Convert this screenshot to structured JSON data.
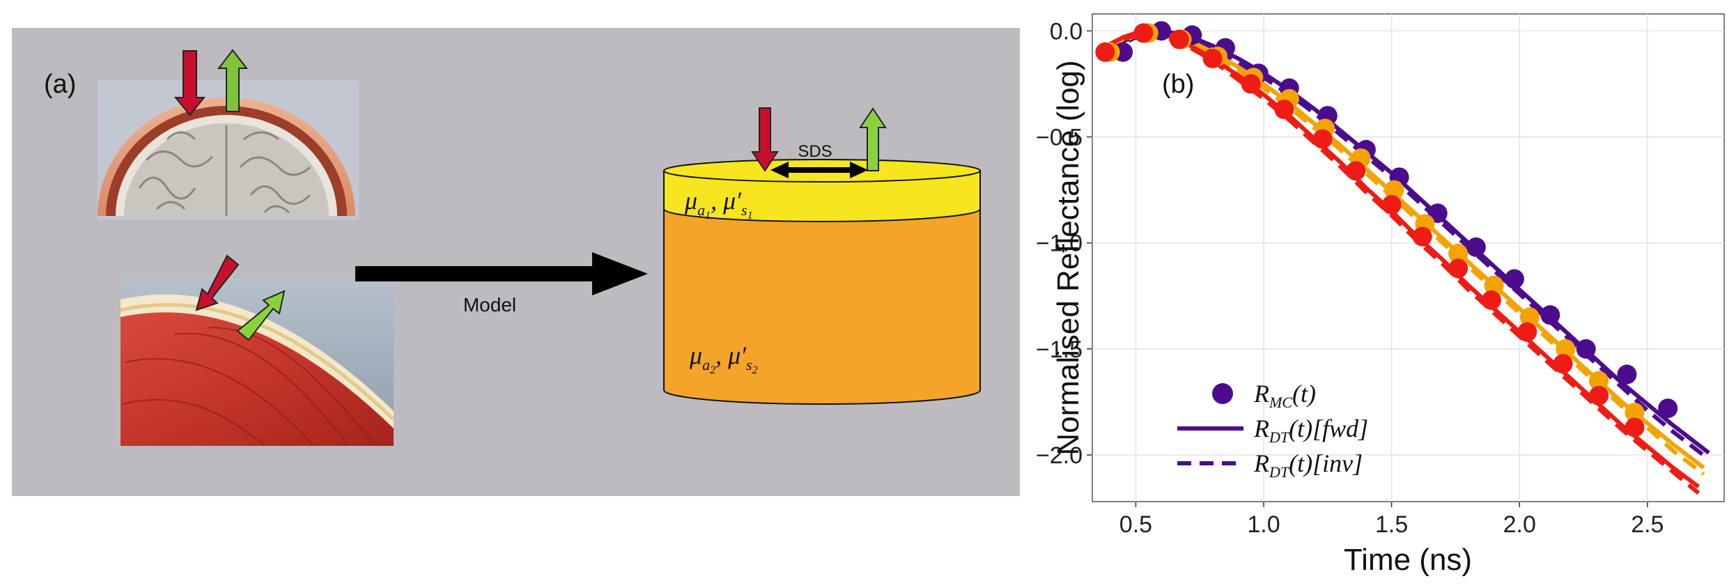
{
  "panel_a": {
    "label": "(a)",
    "arrow_label": "Model",
    "sds_label": "SDS",
    "top_layer": {
      "mu_a": "μ",
      "mu_a_sub": "a",
      "mu_a_subsub": "1",
      "sep": ", ",
      "mu_s": "μ′",
      "mu_s_sub": "s",
      "mu_s_subsub": "1"
    },
    "bottom_layer": {
      "mu_a": "μ",
      "mu_a_sub": "a",
      "mu_a_subsub": "2",
      "sep": ", ",
      "mu_s": "μ′",
      "mu_s_sub": "s",
      "mu_s_subsub": "2"
    },
    "colors": {
      "background": "#bdbbbf",
      "top_layer": "#f6e51f",
      "bottom_layer": "#f4a428",
      "in_arrow": "#c8102e",
      "out_arrow": "#7ec33a"
    }
  },
  "panel_b": {
    "label": "(b)",
    "chart_data": {
      "type": "line",
      "xlabel": "Time (ns)",
      "ylabel": "Normalised Reflectance (log)",
      "xlim": [
        0.33,
        2.8
      ],
      "ylim": [
        -2.22,
        0.08
      ],
      "xticks": [
        "0.5",
        "1.0",
        "1.5",
        "2.0",
        "2.5"
      ],
      "yticks": [
        "0.0",
        "−0.5",
        "−1.0",
        "−1.5",
        "−2.0"
      ],
      "grid": true,
      "legend_position": "bottom-left",
      "legend": [
        {
          "style": "marker",
          "base": "R",
          "sub": "MC",
          "arg": "(t)"
        },
        {
          "style": "solid",
          "base": "R",
          "sub": "DT",
          "arg": "(t)[fwd]"
        },
        {
          "style": "dashed",
          "base": "R",
          "sub": "DT",
          "arg": "(t)[inv]"
        }
      ],
      "series": [
        {
          "color": "#4b0d8e",
          "mc_x": [
            0.45,
            0.6,
            0.72,
            0.85,
            0.98,
            1.1,
            1.25,
            1.4,
            1.53,
            1.68,
            1.83,
            1.98,
            2.12,
            2.26,
            2.42,
            2.58
          ],
          "mc_y": [
            -0.1,
            0.0,
            -0.02,
            -0.08,
            -0.2,
            -0.27,
            -0.4,
            -0.56,
            -0.69,
            -0.86,
            -1.02,
            -1.17,
            -1.34,
            -1.5,
            -1.62,
            -1.78
          ],
          "fwd_x": [
            0.39,
            0.45,
            0.5,
            0.55,
            0.6,
            0.7,
            0.8,
            0.9,
            1.0,
            1.1,
            1.2,
            1.3,
            1.4,
            1.5,
            1.6,
            1.7,
            1.8,
            1.9,
            2.0,
            2.1,
            2.2,
            2.3,
            2.4,
            2.5,
            2.6,
            2.74
          ],
          "fwd_y": [
            -0.09,
            -0.05,
            -0.02,
            0.0,
            0.0,
            -0.02,
            -0.07,
            -0.13,
            -0.2,
            -0.28,
            -0.37,
            -0.47,
            -0.57,
            -0.67,
            -0.78,
            -0.89,
            -1.0,
            -1.11,
            -1.22,
            -1.33,
            -1.44,
            -1.55,
            -1.66,
            -1.76,
            -1.86,
            -1.99
          ],
          "inv_x": [
            0.39,
            0.45,
            0.5,
            0.55,
            0.6,
            0.7,
            0.8,
            0.9,
            1.0,
            1.1,
            1.2,
            1.3,
            1.4,
            1.5,
            1.6,
            1.7,
            1.8,
            1.9,
            2.0,
            2.1,
            2.2,
            2.3,
            2.4,
            2.5,
            2.6,
            2.74
          ],
          "inv_y": [
            -0.1,
            -0.06,
            -0.03,
            -0.01,
            -0.01,
            -0.03,
            -0.08,
            -0.15,
            -0.22,
            -0.3,
            -0.39,
            -0.49,
            -0.59,
            -0.69,
            -0.8,
            -0.91,
            -1.02,
            -1.13,
            -1.24,
            -1.35,
            -1.46,
            -1.57,
            -1.68,
            -1.79,
            -1.89,
            -2.02
          ]
        },
        {
          "color": "#f4a300",
          "mc_x": [
            0.4,
            0.55,
            0.68,
            0.82,
            0.96,
            1.1,
            1.24,
            1.38,
            1.51,
            1.63,
            1.76,
            1.9,
            2.04,
            2.18,
            2.31,
            2.45
          ],
          "mc_y": [
            -0.1,
            -0.01,
            -0.04,
            -0.12,
            -0.22,
            -0.32,
            -0.46,
            -0.6,
            -0.75,
            -0.91,
            -1.05,
            -1.2,
            -1.35,
            -1.5,
            -1.65,
            -1.8
          ],
          "fwd_x": [
            0.39,
            0.45,
            0.5,
            0.55,
            0.6,
            0.7,
            0.8,
            0.9,
            1.0,
            1.1,
            1.2,
            1.3,
            1.4,
            1.5,
            1.6,
            1.7,
            1.8,
            1.9,
            2.0,
            2.1,
            2.2,
            2.3,
            2.4,
            2.5,
            2.6,
            2.72
          ],
          "fwd_y": [
            -0.08,
            -0.04,
            -0.01,
            0.0,
            -0.01,
            -0.04,
            -0.1,
            -0.17,
            -0.25,
            -0.34,
            -0.44,
            -0.54,
            -0.65,
            -0.76,
            -0.87,
            -0.98,
            -1.09,
            -1.2,
            -1.31,
            -1.42,
            -1.53,
            -1.64,
            -1.75,
            -1.85,
            -1.95,
            -2.06
          ],
          "inv_x": [
            0.39,
            0.45,
            0.5,
            0.55,
            0.6,
            0.7,
            0.8,
            0.9,
            1.0,
            1.1,
            1.2,
            1.3,
            1.4,
            1.5,
            1.6,
            1.7,
            1.8,
            1.9,
            2.0,
            2.1,
            2.2,
            2.3,
            2.4,
            2.5,
            2.6,
            2.72
          ],
          "inv_y": [
            -0.09,
            -0.05,
            -0.02,
            -0.01,
            -0.02,
            -0.05,
            -0.11,
            -0.19,
            -0.27,
            -0.36,
            -0.46,
            -0.56,
            -0.67,
            -0.78,
            -0.89,
            -1.0,
            -1.11,
            -1.22,
            -1.33,
            -1.44,
            -1.55,
            -1.66,
            -1.77,
            -1.87,
            -1.98,
            -2.09
          ]
        },
        {
          "color": "#ee1c14",
          "mc_x": [
            0.38,
            0.53,
            0.67,
            0.8,
            0.95,
            1.08,
            1.23,
            1.36,
            1.5,
            1.62,
            1.76,
            1.89,
            2.03,
            2.17,
            2.31,
            2.45
          ],
          "mc_y": [
            -0.1,
            -0.01,
            -0.04,
            -0.13,
            -0.25,
            -0.37,
            -0.51,
            -0.66,
            -0.82,
            -0.97,
            -1.12,
            -1.27,
            -1.42,
            -1.57,
            -1.72,
            -1.87
          ],
          "fwd_x": [
            0.37,
            0.45,
            0.5,
            0.55,
            0.6,
            0.7,
            0.8,
            0.9,
            1.0,
            1.1,
            1.2,
            1.3,
            1.4,
            1.5,
            1.6,
            1.7,
            1.8,
            1.9,
            2.0,
            2.1,
            2.2,
            2.3,
            2.4,
            2.5,
            2.6,
            2.7
          ],
          "fwd_y": [
            -0.08,
            -0.03,
            -0.01,
            0.0,
            -0.01,
            -0.06,
            -0.13,
            -0.21,
            -0.3,
            -0.4,
            -0.51,
            -0.62,
            -0.74,
            -0.85,
            -0.97,
            -1.08,
            -1.2,
            -1.31,
            -1.42,
            -1.53,
            -1.64,
            -1.75,
            -1.86,
            -1.96,
            -2.06,
            -2.15
          ],
          "inv_x": [
            0.37,
            0.45,
            0.5,
            0.55,
            0.6,
            0.7,
            0.8,
            0.9,
            1.0,
            1.1,
            1.2,
            1.3,
            1.4,
            1.5,
            1.6,
            1.7,
            1.8,
            1.9,
            2.0,
            2.1,
            2.2,
            2.3,
            2.4,
            2.5,
            2.6,
            2.7
          ],
          "inv_y": [
            -0.09,
            -0.04,
            -0.02,
            -0.01,
            -0.02,
            -0.07,
            -0.14,
            -0.23,
            -0.32,
            -0.42,
            -0.53,
            -0.64,
            -0.76,
            -0.87,
            -0.99,
            -1.1,
            -1.22,
            -1.33,
            -1.44,
            -1.55,
            -1.66,
            -1.77,
            -1.88,
            -1.98,
            -2.08,
            -2.18
          ]
        }
      ]
    }
  }
}
